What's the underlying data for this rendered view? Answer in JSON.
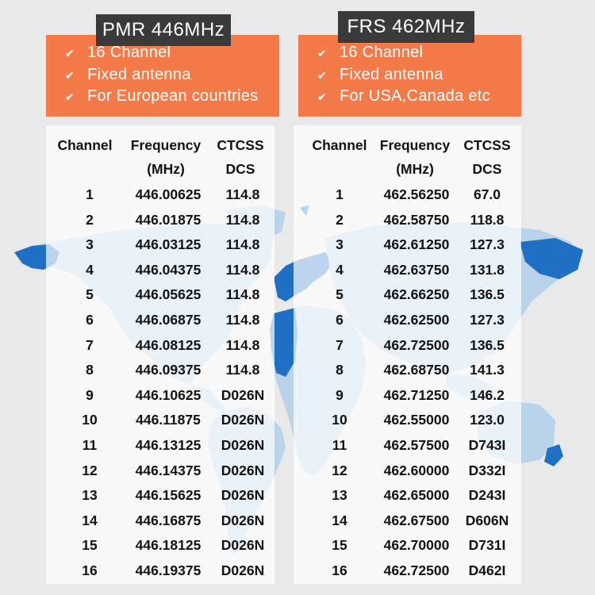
{
  "colors": {
    "background": "#e9e9e9",
    "map": "#b9d3ea",
    "map_highlight": "#1f6fc4",
    "header": "#f47a4a",
    "title_box": "#3a3a3a"
  },
  "pmr": {
    "title": "PMR 446MHz",
    "features": [
      "16 Channel",
      "Fixed antenna",
      "For European countries"
    ],
    "col_channel": "Channel",
    "col_freq_1": "Frequency",
    "col_freq_2": "(MHz)",
    "col_code_1": "CTCSS",
    "col_code_2": "DCS",
    "rows": [
      {
        "ch": "1",
        "freq": "446.00625",
        "code": "114.8"
      },
      {
        "ch": "2",
        "freq": "446.01875",
        "code": "114.8"
      },
      {
        "ch": "3",
        "freq": "446.03125",
        "code": "114.8"
      },
      {
        "ch": "4",
        "freq": "446.04375",
        "code": "114.8"
      },
      {
        "ch": "5",
        "freq": "446.05625",
        "code": "114.8"
      },
      {
        "ch": "6",
        "freq": "446.06875",
        "code": "114.8"
      },
      {
        "ch": "7",
        "freq": "446.08125",
        "code": "114.8"
      },
      {
        "ch": "8",
        "freq": "446.09375",
        "code": "114.8"
      },
      {
        "ch": "9",
        "freq": "446.10625",
        "code": "D026N"
      },
      {
        "ch": "10",
        "freq": "446.11875",
        "code": "D026N"
      },
      {
        "ch": "11",
        "freq": "446.13125",
        "code": "D026N"
      },
      {
        "ch": "12",
        "freq": "446.14375",
        "code": "D026N"
      },
      {
        "ch": "13",
        "freq": "446.15625",
        "code": "D026N"
      },
      {
        "ch": "14",
        "freq": "446.16875",
        "code": "D026N"
      },
      {
        "ch": "15",
        "freq": "446.18125",
        "code": "D026N"
      },
      {
        "ch": "16",
        "freq": "446.19375",
        "code": "D026N"
      }
    ]
  },
  "frs": {
    "title": "FRS 462MHz",
    "features": [
      "16 Channel",
      "Fixed antenna",
      "For USA,Canada etc"
    ],
    "col_channel": "Channel",
    "col_freq_1": "Frequency",
    "col_freq_2": "(MHz)",
    "col_code_1": "CTCSS",
    "col_code_2": "DCS",
    "rows": [
      {
        "ch": "1",
        "freq": "462.56250",
        "code": "67.0"
      },
      {
        "ch": "2",
        "freq": "462.58750",
        "code": "118.8"
      },
      {
        "ch": "3",
        "freq": "462.61250",
        "code": "127.3"
      },
      {
        "ch": "4",
        "freq": "462.63750",
        "code": "131.8"
      },
      {
        "ch": "5",
        "freq": "462.66250",
        "code": "136.5"
      },
      {
        "ch": "6",
        "freq": "462.62500",
        "code": "127.3"
      },
      {
        "ch": "7",
        "freq": "462.72500",
        "code": "136.5"
      },
      {
        "ch": "8",
        "freq": "462.68750",
        "code": "141.3"
      },
      {
        "ch": "9",
        "freq": "462.71250",
        "code": "146.2"
      },
      {
        "ch": "10",
        "freq": "462.55000",
        "code": "123.0"
      },
      {
        "ch": "11",
        "freq": "462.57500",
        "code": "D743I"
      },
      {
        "ch": "12",
        "freq": "462.60000",
        "code": "D332I"
      },
      {
        "ch": "13",
        "freq": "462.65000",
        "code": "D243I"
      },
      {
        "ch": "14",
        "freq": "462.67500",
        "code": "D606N"
      },
      {
        "ch": "15",
        "freq": "462.70000",
        "code": "D731I"
      },
      {
        "ch": "16",
        "freq": "462.72500",
        "code": "D462I"
      }
    ]
  }
}
